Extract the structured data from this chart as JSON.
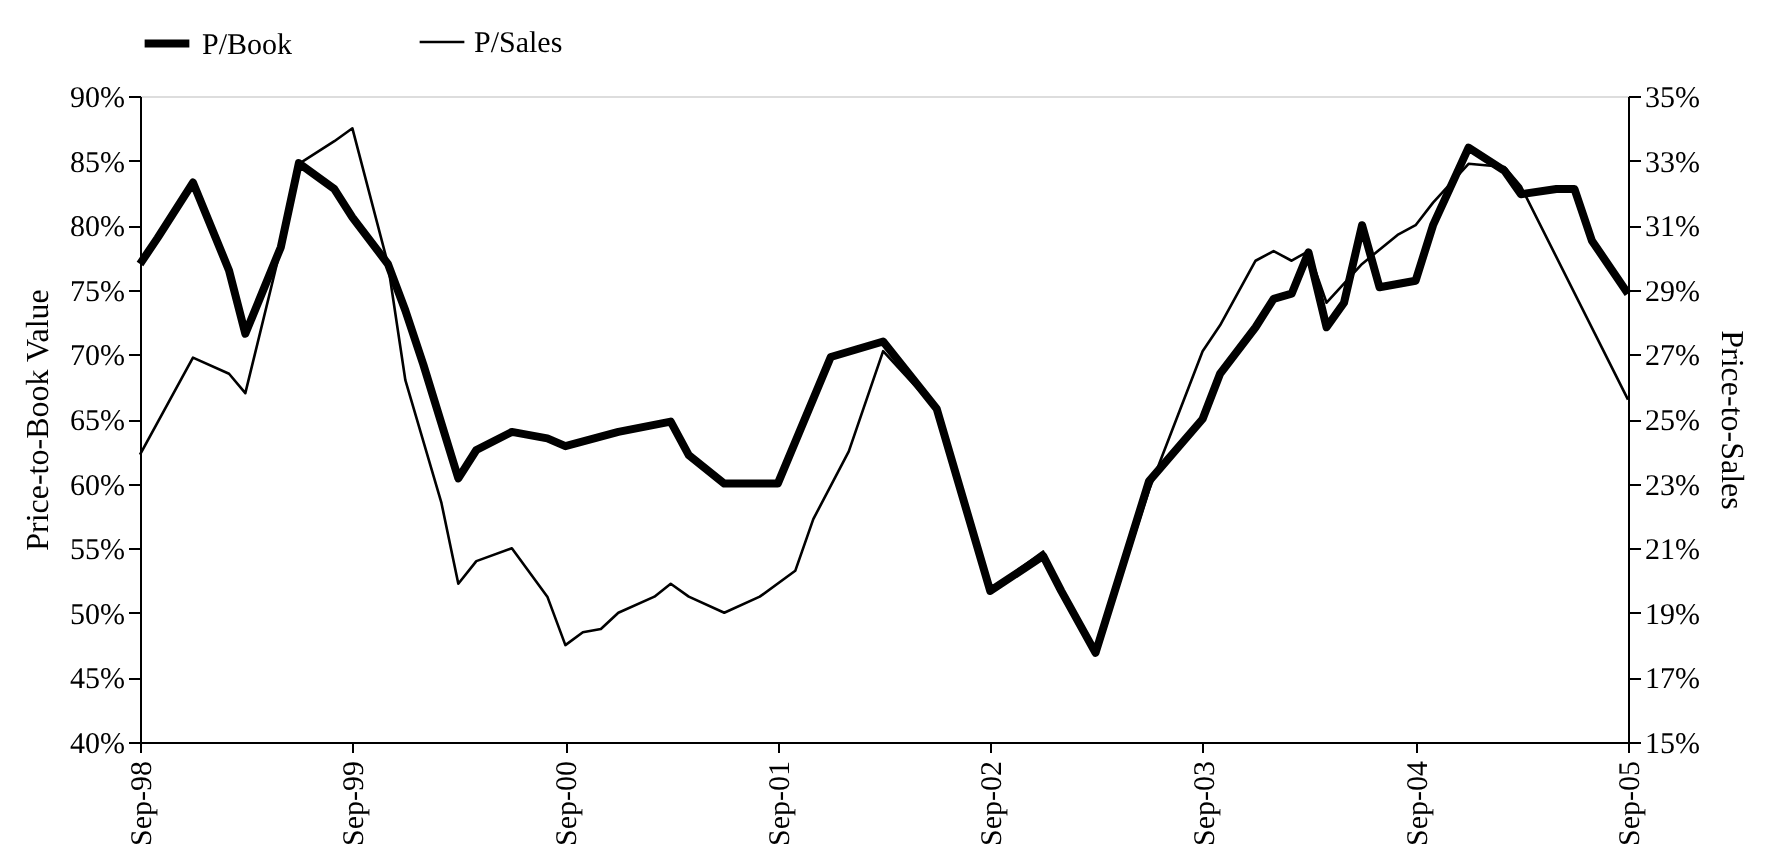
{
  "chart_data": {
    "type": "line",
    "ylabel": "Price-to-Book Value",
    "y2label": "Price-to-Sales",
    "legend": "top",
    "grid": false,
    "line_style": "solid",
    "marker": "none",
    "xlim": [
      "1998-09",
      "2005-09"
    ],
    "xticks": [
      {
        "value": "1998-09",
        "label": "Sep-98"
      },
      {
        "value": "1999-09",
        "label": "Sep-99"
      },
      {
        "value": "2000-09",
        "label": "Sep-00"
      },
      {
        "value": "2001-09",
        "label": "Sep-01"
      },
      {
        "value": "2002-09",
        "label": "Sep-02"
      },
      {
        "value": "2003-09",
        "label": "Sep-03"
      },
      {
        "value": "2004-09",
        "label": "Sep-04"
      },
      {
        "value": "2005-09",
        "label": "Sep-05"
      }
    ],
    "ylim": [
      40,
      90
    ],
    "yticks": [
      {
        "value": 40,
        "label": "40%"
      },
      {
        "value": 45,
        "label": "45%"
      },
      {
        "value": 50,
        "label": "50%"
      },
      {
        "value": 55,
        "label": "55%"
      },
      {
        "value": 60,
        "label": "60%"
      },
      {
        "value": 65,
        "label": "65%"
      },
      {
        "value": 70,
        "label": "70%"
      },
      {
        "value": 75,
        "label": "75%"
      },
      {
        "value": 80,
        "label": "80%"
      },
      {
        "value": 85,
        "label": "85%"
      },
      {
        "value": 90,
        "label": "90%"
      }
    ],
    "y2lim": [
      15,
      35
    ],
    "y2ticks": [
      {
        "value": 15,
        "label": "15%"
      },
      {
        "value": 17,
        "label": "17%"
      },
      {
        "value": 19,
        "label": "19%"
      },
      {
        "value": 21,
        "label": "21%"
      },
      {
        "value": 23,
        "label": "23%"
      },
      {
        "value": 25,
        "label": "25%"
      },
      {
        "value": 27,
        "label": "27%"
      },
      {
        "value": 29,
        "label": "29%"
      },
      {
        "value": 31,
        "label": "31%"
      },
      {
        "value": 33,
        "label": "33%"
      },
      {
        "value": 35,
        "label": "35%"
      }
    ],
    "series": [
      {
        "name": "P/Book",
        "color": "#000000",
        "axis": "y",
        "x": [
          "1998-09",
          "1998-10",
          "1998-12",
          "1999-02",
          "1999-03",
          "1999-05",
          "1999-06",
          "1999-08",
          "1999-09",
          "1999-11",
          "1999-12",
          "2000-01",
          "2000-03",
          "2000-04",
          "2000-06",
          "2000-08",
          "2000-09",
          "2000-12",
          "2001-03",
          "2001-04",
          "2001-06",
          "2001-09",
          "2001-12",
          "2002-03",
          "2002-06",
          "2002-09",
          "2002-12",
          "2003-01",
          "2003-03",
          "2003-06",
          "2003-09",
          "2003-10",
          "2003-12",
          "2004-01",
          "2004-02",
          "2004-03",
          "2004-04",
          "2004-05",
          "2004-06",
          "2004-07",
          "2004-09",
          "2004-10",
          "2004-12",
          "2005-02",
          "2005-03",
          "2005-05",
          "2005-06",
          "2005-07",
          "2005-09"
        ],
        "values": [
          77,
          79,
          83.3,
          76.5,
          71.6,
          78.3,
          84.8,
          82.8,
          80.6,
          77,
          73.4,
          69.2,
          60.4,
          62.6,
          64,
          63.5,
          62.9,
          64,
          64.8,
          62.2,
          60,
          60,
          69.8,
          71,
          65.8,
          51.7,
          54.4,
          51.7,
          46.9,
          60.2,
          65,
          68.5,
          72.1,
          74.3,
          74.7,
          77.9,
          72.1,
          74,
          80,
          75.2,
          75.7,
          80,
          86,
          84.2,
          82.4,
          82.8,
          82.8,
          78.8,
          74.7
        ]
      },
      {
        "name": "P/Sales",
        "color": "#000000",
        "axis": "y2",
        "x": [
          "1998-09",
          "1998-12",
          "1999-02",
          "1999-03",
          "1999-05",
          "1999-06",
          "1999-08",
          "1999-09",
          "1999-11",
          "1999-12",
          "2000-02",
          "2000-03",
          "2000-04",
          "2000-06",
          "2000-08",
          "2000-09",
          "2000-10",
          "2000-11",
          "2000-12",
          "2001-02",
          "2001-03",
          "2001-04",
          "2001-06",
          "2001-08",
          "2001-10",
          "2001-11",
          "2002-01",
          "2002-03",
          "2002-06",
          "2002-09",
          "2002-12",
          "2003-01",
          "2003-03",
          "2003-06",
          "2003-09",
          "2003-10",
          "2003-12",
          "2004-01",
          "2004-02",
          "2004-03",
          "2004-04",
          "2004-06",
          "2004-08",
          "2004-09",
          "2004-10",
          "2004-12",
          "2005-02",
          "2005-03",
          "2005-09"
        ],
        "values": [
          23.9,
          26.9,
          26.4,
          25.8,
          30.3,
          32.9,
          33.6,
          34,
          29.8,
          26.2,
          22.4,
          19.9,
          20.6,
          21,
          19.5,
          18,
          18.4,
          18.5,
          19,
          19.5,
          19.9,
          19.5,
          19,
          19.5,
          20.3,
          21.9,
          24,
          27.1,
          25.3,
          19.7,
          20.9,
          19.7,
          17.7,
          22.8,
          27.1,
          27.9,
          29.9,
          30.2,
          29.9,
          30.2,
          28.6,
          29.8,
          30.7,
          31,
          31.7,
          32.9,
          32.8,
          32.2,
          25.6
        ]
      }
    ]
  }
}
